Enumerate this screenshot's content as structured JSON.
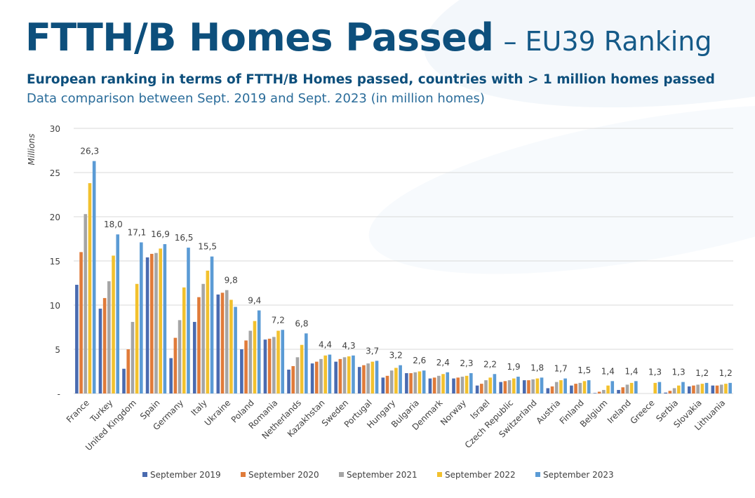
{
  "header": {
    "title": "FTTH/B Homes Passed",
    "title_suffix": "– EU39 Ranking",
    "subtitle": "European ranking in terms of FTTH/B Homes passed, countries with > 1 million homes passed",
    "description": "Data comparison between Sept. 2019 and Sept. 2023 (in million homes)"
  },
  "chart_data": {
    "type": "bar",
    "ylabel": "Millions",
    "ylim": [
      0,
      30
    ],
    "yticks": [
      0,
      5,
      10,
      15,
      20,
      25,
      30
    ],
    "ytick_labels": [
      "-",
      "5",
      "10",
      "15",
      "20",
      "25",
      "30"
    ],
    "grid": true,
    "legend_position": "bottom",
    "categories": [
      "France",
      "Turkey",
      "United Kingdom",
      "Spain",
      "Germany",
      "Italy",
      "Ukraine",
      "Poland",
      "Romania",
      "Netherlands",
      "Kazakhstan",
      "Sweden",
      "Portugal",
      "Hungary",
      "Bulgaria",
      "Denmark",
      "Norway",
      "Israel",
      "Czech Republic",
      "Switzerland",
      "Austria",
      "Finland",
      "Belgium",
      "Ireland",
      "Greece",
      "Serbia",
      "Slovakia",
      "Lithuania"
    ],
    "series": [
      {
        "name": "September 2019",
        "color": "#4a6bb0",
        "values": [
          12.3,
          9.6,
          2.8,
          15.4,
          4.0,
          8.1,
          11.2,
          5.0,
          6.1,
          2.7,
          3.4,
          3.6,
          3.0,
          1.8,
          2.3,
          1.7,
          1.7,
          0.9,
          1.3,
          1.5,
          0.6,
          0.9,
          0.05,
          0.4,
          null,
          0.1,
          0.8,
          0.9
        ]
      },
      {
        "name": "September 2020",
        "color": "#e07b3a",
        "values": [
          16.0,
          10.8,
          5.0,
          15.8,
          6.3,
          10.9,
          11.4,
          6.0,
          6.2,
          3.1,
          3.6,
          3.9,
          3.2,
          2.0,
          2.3,
          1.8,
          1.8,
          1.1,
          1.4,
          1.5,
          0.8,
          1.1,
          0.2,
          0.7,
          null,
          0.3,
          0.9,
          0.9
        ]
      },
      {
        "name": "September 2021",
        "color": "#a5a5a5",
        "values": [
          20.3,
          12.7,
          8.1,
          15.9,
          8.3,
          12.4,
          11.7,
          7.1,
          6.4,
          4.1,
          3.9,
          4.1,
          3.4,
          2.6,
          2.4,
          2.0,
          1.9,
          1.5,
          1.5,
          1.6,
          1.3,
          1.2,
          0.4,
          1.0,
          null,
          0.6,
          1.0,
          1.0
        ]
      },
      {
        "name": "September 2022",
        "color": "#f2c12e",
        "values": [
          23.8,
          15.6,
          12.4,
          16.4,
          12.0,
          13.9,
          10.6,
          8.2,
          7.1,
          5.5,
          4.3,
          4.2,
          3.6,
          2.9,
          2.5,
          2.2,
          2.0,
          1.8,
          1.7,
          1.7,
          1.5,
          1.4,
          0.9,
          1.2,
          1.2,
          0.9,
          1.1,
          1.1
        ]
      },
      {
        "name": "September 2023",
        "color": "#5b9bd5",
        "values": [
          26.3,
          18.0,
          17.1,
          16.9,
          16.5,
          15.5,
          9.8,
          9.4,
          7.2,
          6.8,
          4.4,
          4.3,
          3.7,
          3.2,
          2.6,
          2.4,
          2.3,
          2.2,
          1.9,
          1.8,
          1.7,
          1.5,
          1.4,
          1.4,
          1.3,
          1.3,
          1.2,
          1.2
        ]
      }
    ],
    "data_labels": [
      "26,3",
      "18,0",
      "17,1",
      "16,9",
      "16,5",
      "15,5",
      "9,8",
      "9,4",
      "7,2",
      "6,8",
      "4,4",
      "4,3",
      "3,7",
      "3,2",
      "2,6",
      "2,4",
      "2,3",
      "2,2",
      "1,9",
      "1,8",
      "1,7",
      "1,5",
      "1,4",
      "1,4",
      "1,3",
      "1,3",
      "1,2",
      "1,2"
    ]
  }
}
